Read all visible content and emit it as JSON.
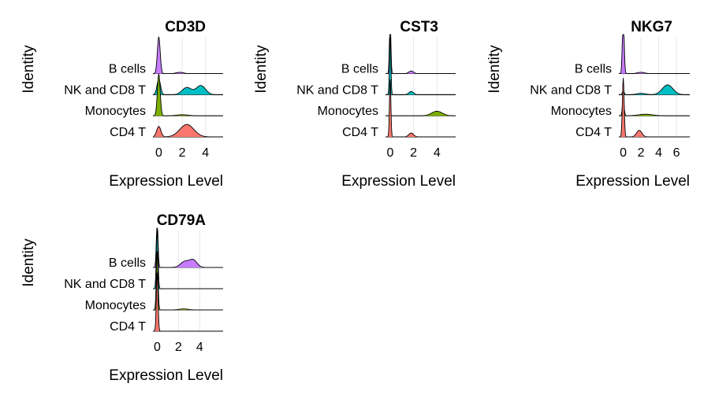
{
  "chart_data": [
    {
      "type": "ridgeline",
      "title": "CD3D",
      "xlabel": "Expression Level",
      "ylabel": "Identity",
      "xlim": [
        -0.5,
        5.5
      ],
      "x_ticks": [
        0,
        2,
        4
      ],
      "x_tick_labels": [
        "0",
        "2",
        "4"
      ],
      "grid": true,
      "identities": [
        {
          "name": "CD4 T",
          "color": "#F8766D",
          "peaks": [
            [
              0,
              0.8,
              0.18
            ],
            [
              2.4,
              0.95,
              0.6
            ]
          ]
        },
        {
          "name": "Monocytes",
          "color": "#7CAE00",
          "peaks": [
            [
              0,
              3.2,
              0.12
            ],
            [
              2.0,
              0.08,
              0.5
            ]
          ]
        },
        {
          "name": "NK and CD8 T",
          "color": "#00BFC4",
          "peaks": [
            [
              0,
              1.2,
              0.15
            ],
            [
              2.4,
              0.55,
              0.4
            ],
            [
              3.6,
              0.7,
              0.4
            ]
          ]
        },
        {
          "name": "B cells",
          "color": "#C77CFF",
          "peaks": [
            [
              0,
              2.8,
              0.12
            ],
            [
              1.8,
              0.1,
              0.3
            ]
          ]
        }
      ]
    },
    {
      "type": "ridgeline",
      "title": "CST3",
      "xlabel": "Expression Level",
      "ylabel": "Identity",
      "xlim": [
        -0.4,
        5.6
      ],
      "x_ticks": [
        0,
        2,
        4
      ],
      "x_tick_labels": [
        "0",
        "2",
        "4"
      ],
      "grid": true,
      "identities": [
        {
          "name": "CD4 T",
          "color": "#F8766D",
          "peaks": [
            [
              0,
              4.5,
              0.06
            ],
            [
              1.8,
              0.3,
              0.2
            ]
          ]
        },
        {
          "name": "Monocytes",
          "color": "#7CAE00",
          "peaks": [
            [
              4.0,
              0.35,
              0.45
            ]
          ]
        },
        {
          "name": "NK and CD8 T",
          "color": "#00BFC4",
          "peaks": [
            [
              0,
              4.5,
              0.06
            ],
            [
              1.8,
              0.25,
              0.2
            ]
          ]
        },
        {
          "name": "B cells",
          "color": "#C77CFF",
          "peaks": [
            [
              0,
              4.5,
              0.06
            ],
            [
              1.8,
              0.2,
              0.2
            ]
          ]
        }
      ]
    },
    {
      "type": "ridgeline",
      "title": "NKG7",
      "xlabel": "Expression Level",
      "ylabel": "Identity",
      "xlim": [
        -0.5,
        7.5
      ],
      "x_ticks": [
        0,
        2,
        4,
        6
      ],
      "x_tick_labels": [
        "0",
        "2",
        "4",
        "6"
      ],
      "grid": true,
      "identities": [
        {
          "name": "CD4 T",
          "color": "#F8766D",
          "peaks": [
            [
              0,
              4.5,
              0.1
            ],
            [
              1.8,
              0.5,
              0.3
            ]
          ]
        },
        {
          "name": "Monocytes",
          "color": "#7CAE00",
          "peaks": [
            [
              0,
              1.2,
              0.1
            ],
            [
              2.5,
              0.12,
              0.8
            ]
          ]
        },
        {
          "name": "NK and CD8 T",
          "color": "#00BFC4",
          "peaks": [
            [
              0,
              0.3,
              0.1
            ],
            [
              2.0,
              0.1,
              0.5
            ],
            [
              5.0,
              0.75,
              0.6
            ]
          ]
        },
        {
          "name": "B cells",
          "color": "#C77CFF",
          "peaks": [
            [
              0,
              4.5,
              0.1
            ],
            [
              2.0,
              0.1,
              0.4
            ]
          ]
        }
      ]
    },
    {
      "type": "ridgeline",
      "title": "CD79A",
      "xlabel": "Expression Level",
      "ylabel": "Identity",
      "xlim": [
        -0.4,
        6.2
      ],
      "x_ticks": [
        0,
        2,
        4
      ],
      "x_tick_labels": [
        "0",
        "2",
        "4"
      ],
      "grid": true,
      "identities": [
        {
          "name": "CD4 T",
          "color": "#F8766D",
          "peaks": [
            [
              0,
              4.5,
              0.08
            ]
          ]
        },
        {
          "name": "Monocytes",
          "color": "#7CAE00",
          "peaks": [
            [
              0,
              4.5,
              0.08
            ],
            [
              2.5,
              0.08,
              0.4
            ]
          ]
        },
        {
          "name": "NK and CD8 T",
          "color": "#00BFC4",
          "peaks": [
            [
              0,
              4.5,
              0.08
            ]
          ]
        },
        {
          "name": "B cells",
          "color": "#C77CFF",
          "peaks": [
            [
              0,
              3.5,
              0.08
            ],
            [
              2.6,
              0.45,
              0.4
            ],
            [
              3.4,
              0.55,
              0.35
            ]
          ]
        }
      ]
    }
  ]
}
